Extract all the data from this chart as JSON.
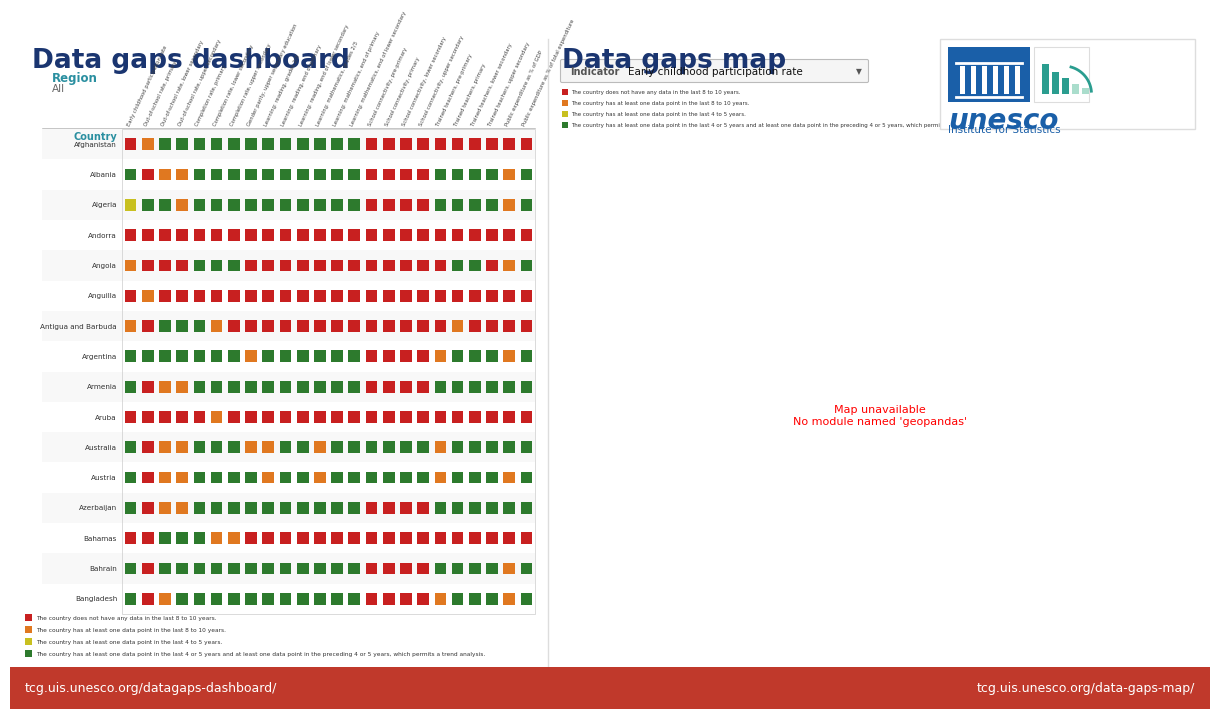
{
  "title_left": "Data gaps dashboard",
  "title_right": "Data gaps map",
  "region_label": "Region",
  "region_value": "All",
  "indicator_label": "Indicator",
  "indicator_value": "Early childhood participation rate",
  "title_color": "#1a3570",
  "region_color": "#2a8fa0",
  "bg_color": "#ffffff",
  "footer_bg": "#c0392b",
  "footer_text_left": "tcg.uis.unesco.org/datagaps-dashboard/",
  "footer_text_right": "tcg.uis.unesco.org/data-gaps-map/",
  "footer_color": "#ffffff",
  "countries": [
    "Afghanistan",
    "Albania",
    "Algeria",
    "Andorra",
    "Angola",
    "Anguilla",
    "Antigua and Barbuda",
    "Argentina",
    "Armenia",
    "Aruba",
    "Australia",
    "Austria",
    "Azerbaijan",
    "Bahamas",
    "Bahrain",
    "Bangladesh"
  ],
  "columns": [
    "Early childhood participation rate",
    "Out-of-school rate, primary",
    "Out-of-school rate, lower secondary",
    "Out-of-school rate, upper secondary",
    "Completion rate, primary",
    "Completion rate, lower secondary",
    "Completion rate, upper secondary",
    "Gender parity, upper secondary education",
    "Learning: reading, grades 2/3",
    "Learning: reading, end of primary",
    "Learning: reading, end of lower secondary",
    "Learning: mathematics, grades 2/3",
    "Learning: mathematics, end of primary",
    "Learning: mathematics, end of lower secondary",
    "School connectivity, pre-primary",
    "School connectivity, primary",
    "School connectivity, lower secondary",
    "School connectivity, upper secondary",
    "Trained teachers, pre-primary",
    "Trained teachers, primary",
    "Trained teachers, lower secondary",
    "Trained teachers, upper secondary",
    "Public expenditure as % of GDP",
    "Public expenditure as % of total expenditure"
  ],
  "legend_left": [
    {
      "color": "#2d7a2d",
      "text": "The country has at least one data point in the last 4 or 5 years and at least one data point in the preceding 4 or 5 years, which permits a trend analysis."
    },
    {
      "color": "#c8c020",
      "text": "The country has at least one data point in the last 4 to 5 years."
    },
    {
      "color": "#e07820",
      "text": "The country has at least one data point in the last 8 to 10 years."
    },
    {
      "color": "#c82020",
      "text": "The country does not have any data in the last 8 to 10 years."
    }
  ],
  "legend_right": [
    {
      "color": "#c82020",
      "text": "The country does not have any data in the last 8 to 10 years."
    },
    {
      "color": "#e07820",
      "text": "The country has at least one data point in the last 8 to 10 years."
    },
    {
      "color": "#c8c020",
      "text": "The country has at least one data point in the last 4 to 5 years."
    },
    {
      "color": "#2d7a2d",
      "text": "The country has at least one data point in the last 4 or 5 years and at least one data point in the preceding 4 or 5 years, which permits a trend analysis."
    }
  ],
  "cell_colors": [
    [
      "R",
      "O",
      "G",
      "G",
      "G",
      "G",
      "G",
      "G",
      "G",
      "G",
      "G",
      "G",
      "G",
      "G",
      "R",
      "R",
      "R",
      "R",
      "R",
      "R",
      "R",
      "R",
      "R",
      "R"
    ],
    [
      "G",
      "R",
      "O",
      "O",
      "G",
      "G",
      "G",
      "G",
      "G",
      "G",
      "G",
      "G",
      "G",
      "G",
      "R",
      "R",
      "R",
      "R",
      "G",
      "G",
      "G",
      "G",
      "O",
      "G"
    ],
    [
      "Y",
      "G",
      "G",
      "O",
      "G",
      "G",
      "G",
      "G",
      "G",
      "G",
      "G",
      "G",
      "G",
      "G",
      "R",
      "R",
      "R",
      "R",
      "G",
      "G",
      "G",
      "G",
      "O",
      "G"
    ],
    [
      "R",
      "R",
      "R",
      "R",
      "R",
      "R",
      "R",
      "R",
      "R",
      "R",
      "R",
      "R",
      "R",
      "R",
      "R",
      "R",
      "R",
      "R",
      "R",
      "R",
      "R",
      "R",
      "R",
      "R"
    ],
    [
      "O",
      "R",
      "R",
      "R",
      "G",
      "G",
      "G",
      "R",
      "R",
      "R",
      "R",
      "R",
      "R",
      "R",
      "R",
      "R",
      "R",
      "R",
      "R",
      "G",
      "G",
      "R",
      "O",
      "G"
    ],
    [
      "R",
      "O",
      "R",
      "R",
      "R",
      "R",
      "R",
      "R",
      "R",
      "R",
      "R",
      "R",
      "R",
      "R",
      "R",
      "R",
      "R",
      "R",
      "R",
      "R",
      "R",
      "R",
      "R",
      "R"
    ],
    [
      "O",
      "R",
      "G",
      "G",
      "G",
      "O",
      "R",
      "R",
      "R",
      "R",
      "R",
      "R",
      "R",
      "R",
      "R",
      "R",
      "R",
      "R",
      "R",
      "O",
      "R",
      "R",
      "R",
      "R"
    ],
    [
      "G",
      "G",
      "G",
      "G",
      "G",
      "G",
      "G",
      "O",
      "G",
      "G",
      "G",
      "G",
      "G",
      "G",
      "R",
      "R",
      "R",
      "R",
      "O",
      "G",
      "G",
      "G",
      "O",
      "G"
    ],
    [
      "G",
      "R",
      "O",
      "O",
      "G",
      "G",
      "G",
      "G",
      "G",
      "G",
      "G",
      "G",
      "G",
      "G",
      "R",
      "R",
      "R",
      "R",
      "G",
      "G",
      "G",
      "G",
      "G",
      "G"
    ],
    [
      "R",
      "R",
      "R",
      "R",
      "R",
      "O",
      "R",
      "R",
      "R",
      "R",
      "R",
      "R",
      "R",
      "R",
      "R",
      "R",
      "R",
      "R",
      "R",
      "R",
      "R",
      "R",
      "R",
      "R"
    ],
    [
      "G",
      "R",
      "O",
      "O",
      "G",
      "G",
      "G",
      "O",
      "O",
      "G",
      "G",
      "O",
      "G",
      "G",
      "G",
      "G",
      "G",
      "G",
      "O",
      "G",
      "G",
      "G",
      "G",
      "G"
    ],
    [
      "G",
      "R",
      "O",
      "O",
      "G",
      "G",
      "G",
      "G",
      "O",
      "G",
      "G",
      "O",
      "G",
      "G",
      "G",
      "G",
      "G",
      "G",
      "O",
      "G",
      "G",
      "G",
      "O",
      "G"
    ],
    [
      "G",
      "R",
      "O",
      "O",
      "G",
      "G",
      "G",
      "G",
      "G",
      "G",
      "G",
      "G",
      "G",
      "G",
      "R",
      "R",
      "R",
      "R",
      "G",
      "G",
      "G",
      "G",
      "G",
      "G"
    ],
    [
      "R",
      "R",
      "G",
      "G",
      "G",
      "O",
      "O",
      "R",
      "R",
      "R",
      "R",
      "R",
      "R",
      "R",
      "R",
      "R",
      "R",
      "R",
      "R",
      "R",
      "R",
      "R",
      "R",
      "R"
    ],
    [
      "G",
      "R",
      "G",
      "G",
      "G",
      "G",
      "G",
      "G",
      "G",
      "G",
      "G",
      "G",
      "G",
      "G",
      "R",
      "R",
      "R",
      "R",
      "G",
      "G",
      "G",
      "G",
      "O",
      "G"
    ],
    [
      "G",
      "R",
      "O",
      "G",
      "G",
      "G",
      "G",
      "G",
      "G",
      "G",
      "G",
      "G",
      "G",
      "G",
      "R",
      "R",
      "R",
      "R",
      "O",
      "G",
      "G",
      "G",
      "O",
      "G"
    ]
  ],
  "color_map": {
    "G": "#2d7a2d",
    "Y": "#c8c020",
    "O": "#e07820",
    "R": "#c82020",
    "X": "#bbbbbb"
  },
  "map_ocean_color": "#d0e8f5",
  "map_land_default": "#cccccc",
  "unesco_blue": "#1a5fa8",
  "unesco_teal": "#2a9d8f"
}
